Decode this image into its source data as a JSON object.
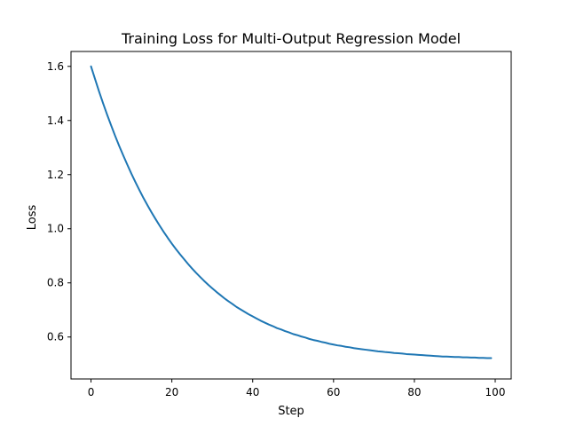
{
  "chart_data": {
    "type": "line",
    "title": "Training Loss for Multi-Output Regression Model",
    "xlabel": "Step",
    "ylabel": "Loss",
    "xlim": [
      -4.95,
      103.95
    ],
    "ylim": [
      0.445,
      1.655
    ],
    "xticks": [
      0,
      20,
      40,
      60,
      80,
      100
    ],
    "xtick_labels": [
      "0",
      "20",
      "40",
      "60",
      "80",
      "100"
    ],
    "yticks": [
      0.6,
      0.8,
      1.0,
      1.2,
      1.4,
      1.6
    ],
    "ytick_labels": [
      "0.6",
      "0.8",
      "1.0",
      "1.2",
      "1.4",
      "1.6"
    ],
    "grid": false,
    "line_color": "#1f77b4",
    "series": [
      {
        "x": [
          0,
          1,
          2,
          3,
          4,
          5,
          6,
          7,
          8,
          9,
          10,
          11,
          12,
          13,
          14,
          15,
          16,
          17,
          18,
          19,
          20,
          21,
          22,
          23,
          24,
          25,
          26,
          27,
          28,
          29,
          30,
          31,
          32,
          33,
          34,
          35,
          36,
          37,
          38,
          39,
          40,
          41,
          42,
          43,
          44,
          45,
          46,
          47,
          48,
          49,
          50,
          51,
          52,
          53,
          54,
          55,
          56,
          57,
          58,
          59,
          60,
          61,
          62,
          63,
          64,
          65,
          66,
          67,
          68,
          69,
          70,
          71,
          72,
          73,
          74,
          75,
          76,
          77,
          78,
          79,
          80,
          81,
          82,
          83,
          84,
          85,
          86,
          87,
          88,
          89,
          90,
          91,
          92,
          93,
          94,
          95,
          96,
          97,
          98,
          99
        ],
        "y": [
          1.6,
          1.553,
          1.507,
          1.463,
          1.421,
          1.381,
          1.342,
          1.305,
          1.27,
          1.236,
          1.203,
          1.172,
          1.142,
          1.113,
          1.086,
          1.06,
          1.035,
          1.011,
          0.988,
          0.966,
          0.945,
          0.925,
          0.906,
          0.888,
          0.87,
          0.853,
          0.837,
          0.822,
          0.807,
          0.793,
          0.78,
          0.767,
          0.755,
          0.743,
          0.732,
          0.722,
          0.711,
          0.702,
          0.693,
          0.684,
          0.676,
          0.668,
          0.66,
          0.653,
          0.646,
          0.64,
          0.633,
          0.628,
          0.622,
          0.617,
          0.611,
          0.607,
          0.602,
          0.598,
          0.593,
          0.589,
          0.586,
          0.582,
          0.579,
          0.575,
          0.572,
          0.569,
          0.567,
          0.564,
          0.562,
          0.559,
          0.557,
          0.555,
          0.553,
          0.551,
          0.549,
          0.547,
          0.546,
          0.544,
          0.543,
          0.541,
          0.54,
          0.539,
          0.537,
          0.536,
          0.535,
          0.534,
          0.533,
          0.532,
          0.531,
          0.53,
          0.529,
          0.528,
          0.528,
          0.527,
          0.526,
          0.526,
          0.525,
          0.525,
          0.524,
          0.524,
          0.523,
          0.523,
          0.522,
          0.522
        ]
      }
    ]
  }
}
